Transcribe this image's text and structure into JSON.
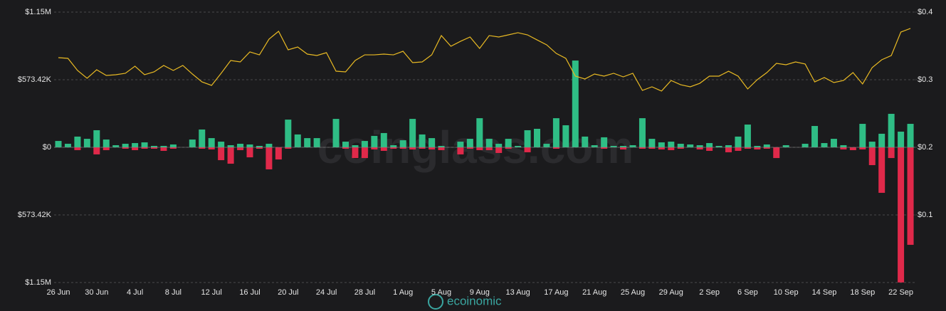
{
  "chart_data": {
    "type": "bar",
    "watermark": "coinglass.com",
    "logo": "ecoinomic",
    "categories": [
      "26 Jun",
      null,
      null,
      null,
      "30 Jun",
      null,
      null,
      null,
      "4 Jul",
      null,
      null,
      null,
      "8 Jul",
      null,
      null,
      null,
      "12 Jul",
      null,
      null,
      null,
      "16 Jul",
      null,
      null,
      null,
      "20 Jul",
      null,
      null,
      null,
      "24 Jul",
      null,
      null,
      null,
      "28 Jul",
      null,
      null,
      null,
      "1 Aug",
      null,
      null,
      null,
      "5 Aug",
      null,
      null,
      null,
      "9 Aug",
      null,
      null,
      null,
      "13 Aug",
      null,
      null,
      null,
      "17 Aug",
      null,
      null,
      null,
      "21 Aug",
      null,
      null,
      null,
      "25 Aug",
      null,
      null,
      null,
      "29 Aug",
      null,
      null,
      null,
      "2 Sep",
      null,
      null,
      null,
      "6 Sep",
      null,
      null,
      null,
      "10 Sep",
      null,
      null,
      null,
      "14 Sep",
      null,
      null,
      null,
      "18 Sep",
      null,
      null,
      null,
      "22 Sep",
      null
    ],
    "ylim": [
      -1146840,
      1146840
    ],
    "yticks": [
      {
        "value": -1146840,
        "label": "$1.15M"
      },
      {
        "value": -573420,
        "label": "$573.42K"
      },
      {
        "value": 0,
        "label": "$0"
      },
      {
        "value": 573420,
        "label": "$573.42K"
      },
      {
        "value": 1146840,
        "label": "$1.15M"
      }
    ],
    "y2lim": [
      0,
      0.4
    ],
    "y2ticks": [
      {
        "value": 0.1,
        "label": "$0.1"
      },
      {
        "value": 0.2,
        "label": "$0.2"
      },
      {
        "value": 0.3,
        "label": "$0.3"
      },
      {
        "value": 0.4,
        "label": "$0.4"
      }
    ],
    "grid": true,
    "series": [
      {
        "type": "bar",
        "color": "#2fbd85",
        "values": [
          54000,
          30000,
          91000,
          72000,
          145000,
          66000,
          18000,
          30000,
          36000,
          42000,
          12000,
          12000,
          24000,
          0,
          66000,
          151000,
          78000,
          48000,
          18000,
          30000,
          24000,
          12000,
          30000,
          0,
          235000,
          109000,
          78000,
          78000,
          0,
          241000,
          48000,
          18000,
          54000,
          97000,
          121000,
          18000,
          60000,
          241000,
          109000,
          78000,
          12000,
          0,
          48000,
          72000,
          247000,
          72000,
          30000,
          72000,
          12000,
          145000,
          157000,
          30000,
          247000,
          187000,
          736000,
          91000,
          18000,
          85000,
          12000,
          12000,
          18000,
          247000,
          72000,
          42000,
          48000,
          30000,
          24000,
          18000,
          36000,
          12000,
          18000,
          91000,
          193000,
          12000,
          24000,
          0,
          18000,
          0,
          30000,
          181000,
          36000,
          72000,
          18000,
          0,
          199000,
          48000,
          115000,
          284000,
          133000,
          199000
        ]
      },
      {
        "type": "bar",
        "color": "#e0294a",
        "values": [
          0,
          0,
          -24000,
          0,
          -60000,
          -24000,
          0,
          -12000,
          -24000,
          -12000,
          -12000,
          -30000,
          -12000,
          0,
          0,
          -12000,
          -18000,
          -109000,
          -139000,
          -24000,
          -85000,
          -12000,
          -187000,
          -103000,
          -12000,
          0,
          0,
          0,
          0,
          0,
          -12000,
          -91000,
          -91000,
          -18000,
          -30000,
          -12000,
          -12000,
          -18000,
          -12000,
          -18000,
          -24000,
          0,
          -60000,
          -12000,
          -24000,
          -24000,
          -48000,
          -12000,
          0,
          -42000,
          0,
          0,
          -12000,
          0,
          0,
          0,
          0,
          -12000,
          0,
          -18000,
          0,
          -12000,
          -12000,
          -18000,
          -24000,
          -12000,
          0,
          -18000,
          -30000,
          0,
          -42000,
          -30000,
          -12000,
          -18000,
          -12000,
          -91000,
          0,
          0,
          0,
          0,
          0,
          0,
          -18000,
          -24000,
          -18000,
          -151000,
          -386000,
          -91000,
          -1146000,
          -827000
        ]
      },
      {
        "type": "line",
        "axis": "y2",
        "color": "#e8b923",
        "values": [
          0.3326,
          0.3316,
          0.3137,
          0.3021,
          0.3147,
          0.3063,
          0.3074,
          0.3095,
          0.32,
          0.3074,
          0.3116,
          0.3211,
          0.3137,
          0.3211,
          0.3084,
          0.2968,
          0.2916,
          0.3095,
          0.3284,
          0.3263,
          0.3411,
          0.3368,
          0.36,
          0.3716,
          0.3442,
          0.3484,
          0.3379,
          0.3358,
          0.34,
          0.3126,
          0.3116,
          0.3284,
          0.3368,
          0.3368,
          0.3379,
          0.3368,
          0.3421,
          0.3253,
          0.3263,
          0.3368,
          0.3653,
          0.3495,
          0.3568,
          0.3632,
          0.3463,
          0.3653,
          0.3632,
          0.3663,
          0.3695,
          0.3663,
          0.3589,
          0.3516,
          0.3389,
          0.3316,
          0.3053,
          0.3011,
          0.3084,
          0.3053,
          0.3095,
          0.3042,
          0.3095,
          0.2842,
          0.2895,
          0.2832,
          0.2989,
          0.2926,
          0.2895,
          0.2947,
          0.3053,
          0.3053,
          0.3126,
          0.3053,
          0.2863,
          0.3,
          0.3105,
          0.3242,
          0.3221,
          0.3263,
          0.3232,
          0.2968,
          0.3032,
          0.2958,
          0.2989,
          0.3105,
          0.2937,
          0.3179,
          0.3295,
          0.3358,
          0.3705,
          0.3758
        ]
      }
    ]
  }
}
